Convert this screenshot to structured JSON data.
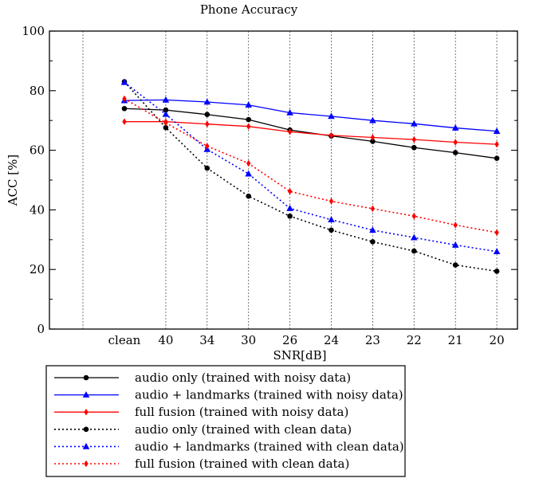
{
  "chart_data": {
    "type": "line",
    "title": "Phone Accuracy",
    "xlabel": "SNR[dB]",
    "ylabel": "ACC [%]",
    "categories": [
      "clean",
      "40",
      "34",
      "30",
      "26",
      "24",
      "23",
      "22",
      "21",
      "20"
    ],
    "ylim": [
      0,
      100
    ],
    "yticks": [
      0,
      20,
      40,
      60,
      80,
      100
    ],
    "grid": "vertical dotted lines at each category",
    "legend_position": "below plot",
    "series": [
      {
        "name": "audio only (trained with noisy data)",
        "color": "#000000",
        "line_style": "solid",
        "marker": "circle",
        "values": [
          74.0,
          73.5,
          72.0,
          70.3,
          66.8,
          64.8,
          63.0,
          60.9,
          59.2,
          57.3
        ]
      },
      {
        "name": "audio + landmarks (trained with noisy data)",
        "color": "#0000ff",
        "line_style": "solid",
        "marker": "triangle",
        "values": [
          76.7,
          76.9,
          76.2,
          75.2,
          72.6,
          71.4,
          70.0,
          68.9,
          67.5,
          66.4
        ]
      },
      {
        "name": "full fusion (trained with noisy data)",
        "color": "#ff0000",
        "line_style": "solid",
        "marker": "diamond",
        "values": [
          69.6,
          69.6,
          68.8,
          68.0,
          66.2,
          65.0,
          64.3,
          63.6,
          62.7,
          62.0
        ]
      },
      {
        "name": "audio only (trained with clean data)",
        "color": "#000000",
        "line_style": "dotted",
        "marker": "circle",
        "values": [
          83.0,
          67.6,
          54.0,
          44.6,
          37.9,
          33.2,
          29.3,
          26.2,
          21.5,
          19.4
        ]
      },
      {
        "name": "audio + landmarks (trained with clean data)",
        "color": "#0000ff",
        "line_style": "dotted",
        "marker": "triangle",
        "values": [
          82.8,
          72.1,
          60.3,
          52.1,
          40.5,
          36.7,
          33.2,
          30.7,
          28.2,
          26.0
        ]
      },
      {
        "name": "full fusion (trained with clean data)",
        "color": "#ff0000",
        "line_style": "dotted",
        "marker": "diamond",
        "values": [
          77.3,
          69.2,
          61.4,
          55.6,
          46.2,
          42.9,
          40.4,
          37.9,
          34.9,
          32.4
        ]
      }
    ]
  }
}
